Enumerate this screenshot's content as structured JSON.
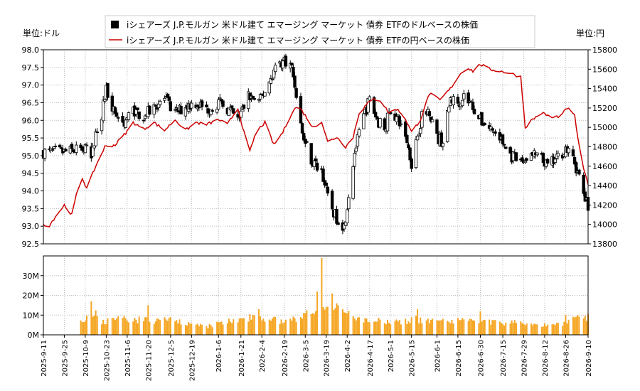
{
  "chart_data": [
    {
      "type": "candlestick+line",
      "legend": {
        "placement": "top-center",
        "entries": [
          {
            "name": "iシェアーズ J.P.モルガン 米ドル建て エマージング マーケット 債券 ETFのドルベースの株価",
            "marker": "black-square"
          },
          {
            "name": "iシェアーズ J.P.モルガン 米ドル建て エマージング マーケット 債券 ETFの円ベースの株価",
            "marker": "red-line"
          }
        ]
      },
      "ylabel_left": "単位:ドル",
      "ylabel_right": "単位:円",
      "ylim_left": [
        92.5,
        98.0
      ],
      "ylim_right": [
        13800,
        15800
      ],
      "yticks_left": [
        "98.0",
        "97.5",
        "97.0",
        "96.5",
        "96.0",
        "95.5",
        "95.0",
        "94.5",
        "94.0",
        "93.5",
        "93.0",
        "92.5"
      ],
      "yticks_right": [
        "15800",
        "15600",
        "15400",
        "15200",
        "15000",
        "14800",
        "14600",
        "14400",
        "14200",
        "14000",
        "13800"
      ],
      "grid": true,
      "price_usd_anchors": [
        [
          "2025-09-11",
          95.1
        ],
        [
          "2025-09-25",
          95.1
        ],
        [
          "2025-10-09",
          95.2
        ],
        [
          "2025-10-13",
          94.9
        ],
        [
          "2025-10-16",
          95.6
        ],
        [
          "2025-10-20",
          96.2
        ],
        [
          "2025-10-23",
          96.9
        ],
        [
          "2025-10-28",
          96.3
        ],
        [
          "2025-11-03",
          95.9
        ],
        [
          "2025-11-10",
          96.3
        ],
        [
          "2025-11-17",
          96.1
        ],
        [
          "2025-11-24",
          96.4
        ],
        [
          "2025-12-01",
          96.6
        ],
        [
          "2025-12-08",
          96.2
        ],
        [
          "2025-12-15",
          96.4
        ],
        [
          "2025-12-22",
          96.5
        ],
        [
          "2025-12-29",
          96.3
        ],
        [
          "2026-01-06",
          96.5
        ],
        [
          "2026-01-13",
          96.3
        ],
        [
          "2026-01-19",
          96.0
        ],
        [
          "2026-01-26",
          96.7
        ],
        [
          "2026-02-02",
          96.5
        ],
        [
          "2026-02-09",
          97.1
        ],
        [
          "2026-02-14",
          97.6
        ],
        [
          "2026-02-20",
          97.7
        ],
        [
          "2026-02-24",
          97.5
        ],
        [
          "2026-02-28",
          96.5
        ],
        [
          "2026-03-03",
          95.6
        ],
        [
          "2026-03-10",
          94.8
        ],
        [
          "2026-03-16",
          94.6
        ],
        [
          "2026-03-20",
          93.8
        ],
        [
          "2026-03-25",
          93.3
        ],
        [
          "2026-03-31",
          93.0
        ],
        [
          "2026-04-03",
          93.9
        ],
        [
          "2026-04-07",
          95.1
        ],
        [
          "2026-04-13",
          96.1
        ],
        [
          "2026-04-17",
          96.6
        ],
        [
          "2026-04-22",
          96.0
        ],
        [
          "2026-04-27",
          95.8
        ],
        [
          "2026-05-01",
          96.3
        ],
        [
          "2026-05-06",
          96.0
        ],
        [
          "2026-05-11",
          95.6
        ],
        [
          "2026-05-15",
          94.8
        ],
        [
          "2026-05-19",
          95.6
        ],
        [
          "2026-05-22",
          96.1
        ],
        [
          "2026-05-27",
          96.3
        ],
        [
          "2026-06-01",
          95.5
        ],
        [
          "2026-06-05",
          95.4
        ],
        [
          "2026-06-10",
          96.6
        ],
        [
          "2026-06-15",
          96.5
        ],
        [
          "2026-06-19",
          96.7
        ],
        [
          "2026-06-25",
          96.4
        ],
        [
          "2026-06-30",
          96.0
        ],
        [
          "2026-07-06",
          95.8
        ],
        [
          "2026-07-13",
          95.5
        ],
        [
          "2026-07-20",
          95.0
        ],
        [
          "2026-07-27",
          94.8
        ],
        [
          "2026-08-01",
          95.0
        ],
        [
          "2026-08-07",
          95.0
        ],
        [
          "2026-08-14",
          94.7
        ],
        [
          "2026-08-20",
          94.9
        ],
        [
          "2026-08-26",
          95.2
        ],
        [
          "2026-09-01",
          94.8
        ],
        [
          "2026-09-05",
          94.2
        ],
        [
          "2026-09-10",
          93.5
        ]
      ],
      "price_jpy_anchors": [
        [
          "2025-09-11",
          14000
        ],
        [
          "2025-09-15",
          13990
        ],
        [
          "2025-09-19",
          14080
        ],
        [
          "2025-09-25",
          14200
        ],
        [
          "2025-09-30",
          14100
        ],
        [
          "2025-10-03",
          14300
        ],
        [
          "2025-10-07",
          14480
        ],
        [
          "2025-10-10",
          14370
        ],
        [
          "2025-10-16",
          14600
        ],
        [
          "2025-10-22",
          14800
        ],
        [
          "2025-10-29",
          14820
        ],
        [
          "2025-11-06",
          14960
        ],
        [
          "2025-11-10",
          15050
        ],
        [
          "2025-11-17",
          14980
        ],
        [
          "2025-11-24",
          15050
        ],
        [
          "2025-12-01",
          14970
        ],
        [
          "2025-12-08",
          15080
        ],
        [
          "2025-12-15",
          14970
        ],
        [
          "2025-12-22",
          15050
        ],
        [
          "2025-12-29",
          15030
        ],
        [
          "2026-01-06",
          15080
        ],
        [
          "2026-01-12",
          15030
        ],
        [
          "2026-01-19",
          15200
        ],
        [
          "2026-01-23",
          14950
        ],
        [
          "2026-01-27",
          14750
        ],
        [
          "2026-01-31",
          14950
        ],
        [
          "2026-02-06",
          15050
        ],
        [
          "2026-02-12",
          14820
        ],
        [
          "2026-02-18",
          14950
        ],
        [
          "2026-02-24",
          15150
        ],
        [
          "2026-02-28",
          15230
        ],
        [
          "2026-03-06",
          15100
        ],
        [
          "2026-03-10",
          15000
        ],
        [
          "2026-03-16",
          15060
        ],
        [
          "2026-03-20",
          14850
        ],
        [
          "2026-03-26",
          14900
        ],
        [
          "2026-04-01",
          14800
        ],
        [
          "2026-04-06",
          14900
        ],
        [
          "2026-04-10",
          15150
        ],
        [
          "2026-04-16",
          15250
        ],
        [
          "2026-04-20",
          15290
        ],
        [
          "2026-04-24",
          15280
        ],
        [
          "2026-04-30",
          15150
        ],
        [
          "2026-05-05",
          15190
        ],
        [
          "2026-05-10",
          15120
        ],
        [
          "2026-05-15",
          14950
        ],
        [
          "2026-05-21",
          15080
        ],
        [
          "2026-05-27",
          15350
        ],
        [
          "2026-06-03",
          15280
        ],
        [
          "2026-06-10",
          15400
        ],
        [
          "2026-06-16",
          15540
        ],
        [
          "2026-06-21",
          15620
        ],
        [
          "2026-06-25",
          15580
        ],
        [
          "2026-06-30",
          15650
        ],
        [
          "2026-07-06",
          15600
        ],
        [
          "2026-07-13",
          15580
        ],
        [
          "2026-07-20",
          15560
        ],
        [
          "2026-07-27",
          15520
        ],
        [
          "2026-07-30",
          15000
        ],
        [
          "2026-08-03",
          15070
        ],
        [
          "2026-08-10",
          15150
        ],
        [
          "2026-08-17",
          15100
        ],
        [
          "2026-08-23",
          15120
        ],
        [
          "2026-08-27",
          15200
        ],
        [
          "2026-09-01",
          15120
        ],
        [
          "2026-09-05",
          14700
        ],
        [
          "2026-09-10",
          14400
        ]
      ]
    },
    {
      "type": "bar",
      "name": "volume",
      "ylim": [
        0,
        40000000
      ],
      "yticks": [
        "0M",
        "10M",
        "20M",
        "30M"
      ],
      "grid": true,
      "bar_color": "#f5a623",
      "x_ticks": [
        "2025-9-11",
        "2025-9-25",
        "2025-10-9",
        "2025-10-23",
        "2025-11-6",
        "2025-11-20",
        "2025-12-5",
        "2025-12-19",
        "2026-1-6",
        "2026-1-21",
        "2026-2-4",
        "2026-2-19",
        "2026-3-5",
        "2026-3-19",
        "2026-4-2",
        "2026-4-17",
        "2026-5-1",
        "2026-5-15",
        "2026-6-1",
        "2026-6-15",
        "2026-6-30",
        "2026-7-15",
        "2026-7-29",
        "2026-8-12",
        "2026-8-26",
        "2026-9-10"
      ],
      "volume_anchors_millions": [
        [
          "2025-10-06",
          6
        ],
        [
          "2025-10-13",
          13
        ],
        [
          "2025-10-20",
          7
        ],
        [
          "2025-10-27",
          7
        ],
        [
          "2025-11-03",
          8
        ],
        [
          "2025-11-10",
          7
        ],
        [
          "2025-11-17",
          8
        ],
        [
          "2025-11-24",
          7
        ],
        [
          "2025-12-01",
          8
        ],
        [
          "2025-12-08",
          7
        ],
        [
          "2025-12-15",
          6
        ],
        [
          "2025-12-22",
          5
        ],
        [
          "2025-12-29",
          4
        ],
        [
          "2026-01-06",
          6
        ],
        [
          "2026-01-13",
          7
        ],
        [
          "2026-01-20",
          7
        ],
        [
          "2026-01-27",
          9
        ],
        [
          "2026-02-03",
          9
        ],
        [
          "2026-02-10",
          8
        ],
        [
          "2026-02-17",
          7
        ],
        [
          "2026-02-24",
          7
        ],
        [
          "2026-03-02",
          10
        ],
        [
          "2026-03-09",
          13
        ],
        [
          "2026-03-16",
          16
        ],
        [
          "2026-03-23",
          14
        ],
        [
          "2026-03-30",
          12
        ],
        [
          "2026-04-06",
          9
        ],
        [
          "2026-04-13",
          7
        ],
        [
          "2026-04-20",
          7
        ],
        [
          "2026-04-27",
          7
        ],
        [
          "2026-05-04",
          7
        ],
        [
          "2026-05-11",
          7
        ],
        [
          "2026-05-18",
          8
        ],
        [
          "2026-05-25",
          7
        ],
        [
          "2026-06-01",
          7
        ],
        [
          "2026-06-08",
          7
        ],
        [
          "2026-06-15",
          7
        ],
        [
          "2026-06-22",
          7
        ],
        [
          "2026-06-29",
          6
        ],
        [
          "2026-07-06",
          7
        ],
        [
          "2026-07-13",
          6
        ],
        [
          "2026-07-20",
          6
        ],
        [
          "2026-07-27",
          6
        ],
        [
          "2026-08-03",
          6
        ],
        [
          "2026-08-10",
          5
        ],
        [
          "2026-08-17",
          5
        ],
        [
          "2026-08-24",
          6
        ],
        [
          "2026-08-31",
          8
        ],
        [
          "2026-09-07",
          8
        ],
        [
          "2026-09-10",
          9
        ]
      ],
      "volume_spikes_millions": [
        [
          "2025-10-13",
          17
        ],
        [
          "2025-11-20",
          15
        ],
        [
          "2026-02-02",
          13
        ],
        [
          "2026-03-12",
          12
        ],
        [
          "2026-03-16",
          39
        ],
        [
          "2026-03-13",
          22
        ],
        [
          "2026-03-19",
          14
        ],
        [
          "2026-03-23",
          21
        ],
        [
          "2026-03-26",
          16
        ],
        [
          "2026-04-02",
          11
        ],
        [
          "2026-05-19",
          13
        ],
        [
          "2026-06-30",
          12
        ],
        [
          "2026-08-26",
          10
        ],
        [
          "2026-09-03",
          10
        ]
      ]
    }
  ]
}
